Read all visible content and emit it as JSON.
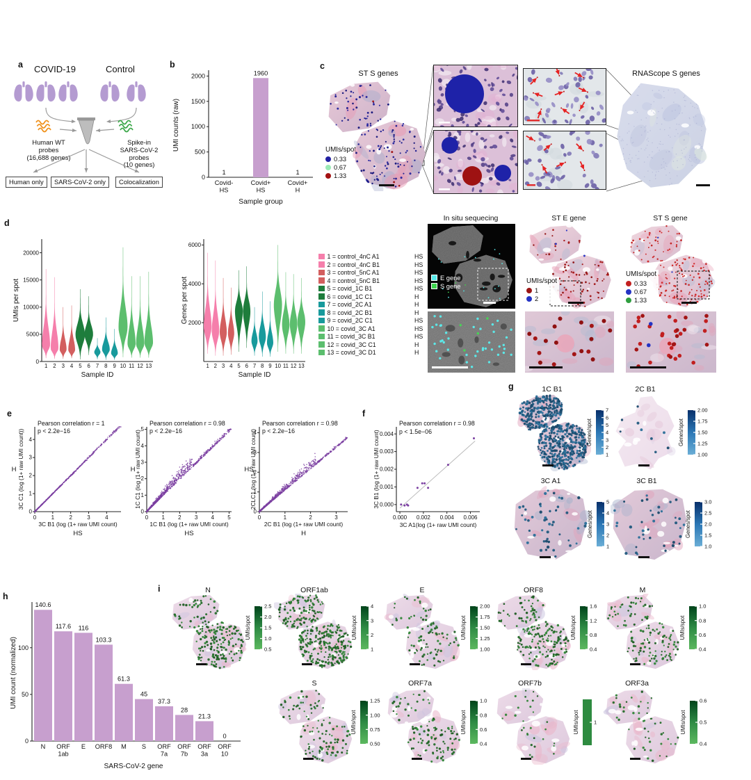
{
  "figure": {
    "background": "#ffffff"
  },
  "panel_a": {
    "label": "a",
    "covid_title": "COVID-19",
    "control_title": "Control",
    "covid_lungs": 3,
    "control_lungs": 2,
    "left_probe_lines": [
      "Human WT",
      "probes",
      "(16,688 genes)"
    ],
    "right_probe_lines": [
      "Spike-in",
      "SARS-CoV-2",
      "probes",
      "(10 genes)"
    ],
    "output_boxes": [
      "Human only",
      "SARS-CoV-2 only",
      "Colocalization"
    ],
    "lung_color": "#b49bd1",
    "probe_orange": "#f0931f",
    "probe_green": "#3fa94d"
  },
  "panel_b": {
    "label": "b",
    "type": "bar",
    "ylabel": "UMI counts (raw)",
    "xlabel": "Sample group",
    "yticks": [
      0,
      500,
      1000,
      1500,
      2000
    ],
    "categories": [
      [
        "Covid-",
        "HS"
      ],
      [
        "Covid+",
        "HS"
      ],
      [
        "Covid+",
        "H"
      ]
    ],
    "values": [
      1,
      1960,
      1
    ],
    "value_labels": [
      "1",
      "1960",
      "1"
    ],
    "bar_color": "#c79fce"
  },
  "panel_c": {
    "label": "c",
    "st_title": "ST S genes",
    "rnascope_title": "RNAScope S genes",
    "legend_title": "UMIs/spot",
    "legend_items": [
      {
        "label": "0.33",
        "color": "#2220a2"
      },
      {
        "label": "0.67",
        "color": "#9aeab5"
      },
      {
        "label": "1.33",
        "color": "#a31212"
      }
    ]
  },
  "panel_d": {
    "label": "d",
    "umis": {
      "type": "violin",
      "ylabel": "UMIs per spot",
      "xlabel": "Sample ID",
      "yticks": [
        0,
        5000,
        10000,
        15000,
        20000
      ],
      "ylim": 22500,
      "samples": [
        1,
        2,
        3,
        4,
        5,
        6,
        7,
        8,
        9,
        10,
        11,
        12,
        13
      ],
      "dist": [
        [
          3000,
          17000,
          600,
          0.95
        ],
        [
          2400,
          15500,
          500,
          0.9
        ],
        [
          2200,
          10000,
          500,
          0.8
        ],
        [
          2100,
          10300,
          600,
          0.8
        ],
        [
          4900,
          13300,
          400,
          1.1
        ],
        [
          5000,
          12000,
          1200,
          1.0
        ],
        [
          1700,
          4300,
          400,
          0.72
        ],
        [
          2200,
          8100,
          300,
          0.9
        ],
        [
          1500,
          6000,
          300,
          0.78
        ],
        [
          6300,
          21000,
          800,
          1.05
        ],
        [
          3200,
          15700,
          700,
          0.95
        ],
        [
          3200,
          15700,
          700,
          0.95
        ],
        [
          3400,
          16500,
          700,
          1.0
        ]
      ]
    },
    "genes": {
      "type": "violin",
      "ylabel": "Genes per spot",
      "xlabel": "Sample ID",
      "yticks": [
        2000,
        4000,
        6000
      ],
      "ylim": 6300,
      "samples": [
        1,
        2,
        3,
        4,
        5,
        6,
        7,
        8,
        9,
        10,
        11,
        12,
        13
      ],
      "dist": [
        [
          1800,
          5600,
          400,
          1.0
        ],
        [
          1550,
          5200,
          300,
          0.95
        ],
        [
          1500,
          4300,
          300,
          0.9
        ],
        [
          1450,
          3800,
          350,
          0.8
        ],
        [
          2600,
          4700,
          500,
          1.0
        ],
        [
          2600,
          4900,
          700,
          0.95
        ],
        [
          1050,
          2800,
          300,
          0.78
        ],
        [
          1250,
          3600,
          250,
          0.9
        ],
        [
          950,
          3100,
          250,
          0.8
        ],
        [
          2900,
          6000,
          500,
          1.05
        ],
        [
          1900,
          4600,
          400,
          0.95
        ],
        [
          1900,
          4500,
          400,
          0.95
        ],
        [
          2050,
          4300,
          400,
          1.0
        ]
      ]
    },
    "violin_colors": [
      "#f57fab",
      "#f57fab",
      "#d35f5f",
      "#d35f5f",
      "#1e7d3c",
      "#1e7d3c",
      "#189a9c",
      "#189a9c",
      "#189a9c",
      "#5cbe6e",
      "#5cbe6e",
      "#5cbe6e",
      "#5cbe6e"
    ],
    "legend": [
      {
        "label": "1 = control_4nC A1",
        "group": "HS",
        "color": "#f57fab"
      },
      {
        "label": "2 = control_4nC B1",
        "group": "HS",
        "color": "#f57fab"
      },
      {
        "label": "3 = control_5nC A1",
        "group": "HS",
        "color": "#d35f5f"
      },
      {
        "label": "4 = control_5nC B1",
        "group": "HS",
        "color": "#d35f5f"
      },
      {
        "label": "5 = covid_1C B1",
        "group": "HS",
        "color": "#1e7d3c"
      },
      {
        "label": "6 = covid_1C C1",
        "group": "H",
        "color": "#1e7d3c"
      },
      {
        "label": "7 = covid_2C A1",
        "group": "H",
        "color": "#189a9c"
      },
      {
        "label": "8 = covid_2C B1",
        "group": "H",
        "color": "#189a9c"
      },
      {
        "label": "9 = covid_2C C1",
        "group": "HS",
        "color": "#189a9c"
      },
      {
        "label": "10 = covid_3C A1",
        "group": "HS",
        "color": "#5cbe6e"
      },
      {
        "label": "11 = covid_3C B1",
        "group": "HS",
        "color": "#5cbe6e"
      },
      {
        "label": "12 = covid_3C C1",
        "group": "H",
        "color": "#5cbe6e"
      },
      {
        "label": "13 = covid_3C D1",
        "group": "H",
        "color": "#5cbe6e"
      }
    ],
    "insitu": {
      "title": "In situ sequecing",
      "legend": [
        {
          "label": "E gene",
          "color": "#57e9e9"
        },
        {
          "label": "S gene",
          "color": "#3fd44f"
        }
      ]
    },
    "st_e": {
      "title": "ST E gene",
      "legend_title": "UMIs/spot",
      "legend_items": [
        {
          "label": "1",
          "color": "#9b1414"
        },
        {
          "label": "2",
          "color": "#2433c4"
        }
      ]
    },
    "st_s": {
      "title": "ST S gene",
      "legend_title": "UMIs/spot",
      "legend_items": [
        {
          "label": "0.33",
          "color": "#c32020"
        },
        {
          "label": "0.67",
          "color": "#2433c4"
        },
        {
          "label": "1.33",
          "color": "#2f9e3f"
        }
      ]
    }
  },
  "panel_e": {
    "label": "e",
    "dot_color": "#7b3fa1",
    "plots": [
      {
        "title1": "Pearson correlation r = 1",
        "title2": "p < 2.2e−16",
        "ylabel": "3C C1 (log (1+ raw UMI count))",
        "ygroup": "H",
        "xlabel": "3C B1 (log (1+ raw UMI count)",
        "xgroup": "HS",
        "xticks": [
          0,
          1,
          2,
          3,
          4
        ],
        "yticks": [
          0,
          1,
          2,
          3,
          4
        ],
        "xmax": 4.8,
        "ymax": 4.7,
        "n": 1000,
        "seed": 5,
        "pattern": "diag"
      },
      {
        "title1": "Pearson correlation r = 0.98",
        "title2": "p < 2.2e−16",
        "ylabel": "1C C1 (log (1+ raw UMI count)",
        "ygroup": "H",
        "xlabel": "1C B1 (log (1+ raw UMI count)",
        "xgroup": "HS",
        "xticks": [
          0,
          1,
          2,
          3,
          4,
          5
        ],
        "yticks": [
          0,
          1,
          2,
          3,
          4,
          5
        ],
        "xmax": 5.15,
        "ymax": 5.15,
        "n": 1300,
        "seed": 9,
        "pattern": "wedge",
        "slope": 0.97,
        "spread": 0.38,
        "cap": 2.2
      },
      {
        "title1": "Pearson correlation r = 0.98",
        "title2": "p < 2.2e−16",
        "ylabel": "2CLC1 (log (1+ raw UMI count)",
        "ygroup": "HS",
        "xlabel": "2C B1 (log (1+ raw UMI count)",
        "xgroup": "H",
        "xticks": [
          0,
          1,
          2,
          3
        ],
        "yticks": [
          0,
          1,
          2,
          3,
          4
        ],
        "xmax": 3.45,
        "ymax": 4.3,
        "n": 1300,
        "seed": 13,
        "pattern": "wedge",
        "slope": 1.08,
        "spread": 0.3,
        "cap": 1.6
      }
    ]
  },
  "panel_f": {
    "label": "f",
    "title1": "Pearson correlation r = 0.98",
    "title2": "p < 1.5e−06",
    "ylabel": "3C B1 (log (1+ raw UMI count)",
    "xlabel": "3C A1(log (1+ raw UMI count)",
    "xticks": [
      "0.000",
      "0.002",
      "0.004",
      "0.006"
    ],
    "yticks": [
      "0.000",
      "0.001",
      "0.002",
      "0.003",
      "0.004"
    ],
    "points": [
      [
        0.0001,
        0.0
      ],
      [
        0.0004,
        -5e-05
      ],
      [
        0.0006,
        0.0
      ],
      [
        0.0007,
        -5e-05
      ],
      [
        0.0015,
        0.00095
      ],
      [
        0.0019,
        0.0012
      ],
      [
        0.0021,
        0.0012
      ],
      [
        0.0024,
        0.00095
      ],
      [
        0.0041,
        0.00225
      ],
      [
        0.0063,
        0.00375
      ]
    ],
    "fit": [
      [
        0.0,
        -0.0002
      ],
      [
        0.0064,
        0.0036
      ]
    ],
    "dot_color": "#7b3fa1"
  },
  "panel_g": {
    "label": "g",
    "colorbar_label": "Genes/spot",
    "tissues": [
      {
        "title": "1C B1",
        "ticks": [
          "7",
          "6",
          "5",
          "4",
          "3",
          "2",
          "1"
        ],
        "dots": 620
      },
      {
        "title": "2C B1",
        "ticks": [
          "2.00",
          "1.75",
          "1.50",
          "1.25",
          "1.00"
        ],
        "dots": 9
      },
      {
        "title": "3C A1",
        "ticks": [
          "5",
          "4",
          "3",
          "2",
          "1"
        ],
        "dots": 50
      },
      {
        "title": "3C B1",
        "ticks": [
          "3.0",
          "2.5",
          "2.0",
          "1.5",
          "1.0"
        ],
        "dots": 38
      }
    ]
  },
  "panel_h": {
    "label": "h",
    "type": "bar",
    "ylabel": "UMI count (normalized)",
    "xlabel": "SARS-CoV-2 gene",
    "yticks": [
      0,
      50,
      100
    ],
    "categories": [
      [
        "N"
      ],
      [
        "ORF",
        "1ab"
      ],
      [
        "E"
      ],
      [
        "ORF8"
      ],
      [
        "M"
      ],
      [
        "S"
      ],
      [
        "ORF",
        "7a"
      ],
      [
        "ORF",
        "7b"
      ],
      [
        "ORF",
        "3a"
      ],
      [
        "ORF",
        "10"
      ]
    ],
    "values": [
      140.6,
      117.6,
      116,
      103.3,
      61.3,
      45,
      37.3,
      28,
      21.3,
      0
    ],
    "value_labels": [
      "140.6",
      "117.6",
      "116",
      "103.3",
      "61.3",
      "45",
      "37.3",
      "28",
      "21.3",
      "0"
    ],
    "bar_color": "#c79fce"
  },
  "panel_i": {
    "label": "i",
    "colorbar_label": "UMIs/spot",
    "genes": [
      {
        "title": "N",
        "ticks": [
          "2.5",
          "2.0",
          "1.5",
          "1.0",
          "0.5"
        ],
        "dots": 210
      },
      {
        "title": "ORF1ab",
        "ticks": [
          "4",
          "3",
          "2",
          "1"
        ],
        "dots": 360
      },
      {
        "title": "E",
        "ticks": [
          "2.00",
          "1.75",
          "1.50",
          "1.25",
          "1.00"
        ],
        "dots": 95
      },
      {
        "title": "ORF8",
        "ticks": [
          "1.6",
          "1.2",
          "0.8",
          "0.4"
        ],
        "dots": 200
      },
      {
        "title": "M",
        "ticks": [
          "1.0",
          "0.8",
          "0.6",
          "0.4"
        ],
        "dots": 130
      },
      {
        "title": "S",
        "ticks": [
          "1.25",
          "1.00",
          "0.75",
          "0.50"
        ],
        "dots": 115
      },
      {
        "title": "ORF7a",
        "ticks": [
          "1.0",
          "0.8",
          "0.6",
          "0.4"
        ],
        "dots": 115
      },
      {
        "title": "ORF7b",
        "ticks": [
          "1"
        ],
        "dots": 30
      },
      {
        "title": "ORF3a",
        "ticks": [
          "0.6",
          "0.5",
          "0.4"
        ],
        "dots": 48
      }
    ]
  }
}
